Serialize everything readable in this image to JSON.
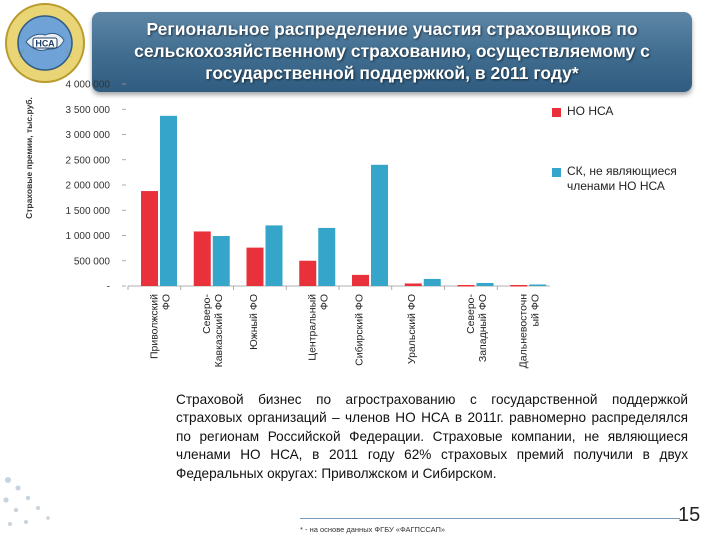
{
  "header": {
    "title": "Региональное распределение участия страховщиков по сельскохозяйственному страхованию, осуществляемому с государственной поддержкой, в 2011 году*"
  },
  "logo": {
    "ring_text": "Национальный союз агростраховщиков",
    "center_text": "НСА",
    "icon": "nsa-emblem-icon"
  },
  "chart_data": {
    "type": "bar",
    "title": "",
    "xlabel": "",
    "ylabel": "Страховые премии, тыс.руб.",
    "ylim": [
      0,
      4000000
    ],
    "ytick_values": [
      0,
      500000,
      1000000,
      1500000,
      2000000,
      2500000,
      3000000,
      3500000,
      4000000
    ],
    "ytick_labels": [
      "-",
      "500 000",
      "1 000 000",
      "1 500 000",
      "2 000 000",
      "2 500 000",
      "3 000 000",
      "3 500 000",
      "4 000 000"
    ],
    "grid": false,
    "legend_position": "right",
    "categories": [
      "Приволжский ФО",
      "Северо-Кавказский ФО",
      "Южный ФО",
      "Центральный ФО",
      "Сибирский ФО",
      "Уральский ФО",
      "Северо-Западный ФО",
      "Дальневосточный ФО"
    ],
    "category_label_lines": [
      [
        "Приволжский",
        "ФО"
      ],
      [
        "Северо-",
        "Кавказский ФО"
      ],
      [
        "Южный ФО"
      ],
      [
        "Центральный",
        "ФО"
      ],
      [
        "Сибирский ФО"
      ],
      [
        "Уральский ФО"
      ],
      [
        "Северо-",
        "Западный ФО"
      ],
      [
        "Дальневосточн",
        "ый ФО"
      ]
    ],
    "series": [
      {
        "name": "НО НСА",
        "color": "#e8313a",
        "values": [
          1880000,
          1080000,
          760000,
          500000,
          220000,
          50000,
          20000,
          20000
        ]
      },
      {
        "name": "СК, не являющиеся членами НО НСА",
        "color": "#35a6c9",
        "values": [
          3370000,
          990000,
          1200000,
          1150000,
          2400000,
          140000,
          60000,
          30000
        ]
      }
    ]
  },
  "legend": {
    "items": [
      {
        "label": "НО НСА",
        "color": "#e8313a"
      },
      {
        "label": "СК, не являющиеся членами НО НСА",
        "color": "#35a6c9"
      }
    ]
  },
  "body": {
    "paragraph": "Страховой бизнес по агрострахованию с государственной поддержкой страховых организаций – членов НО НСА в 2011г. равномерно распределялся по регионам Российской Федерации. Страховые компании, не являющиеся членами НО НСА, в 2011 году 62% страховых премий получили в двух Федеральных округах: Приволжском и Сибирском."
  },
  "footer": {
    "footnote": "* - на основе данных ФГБУ «ФАГПССАП»",
    "page_number": "15"
  }
}
